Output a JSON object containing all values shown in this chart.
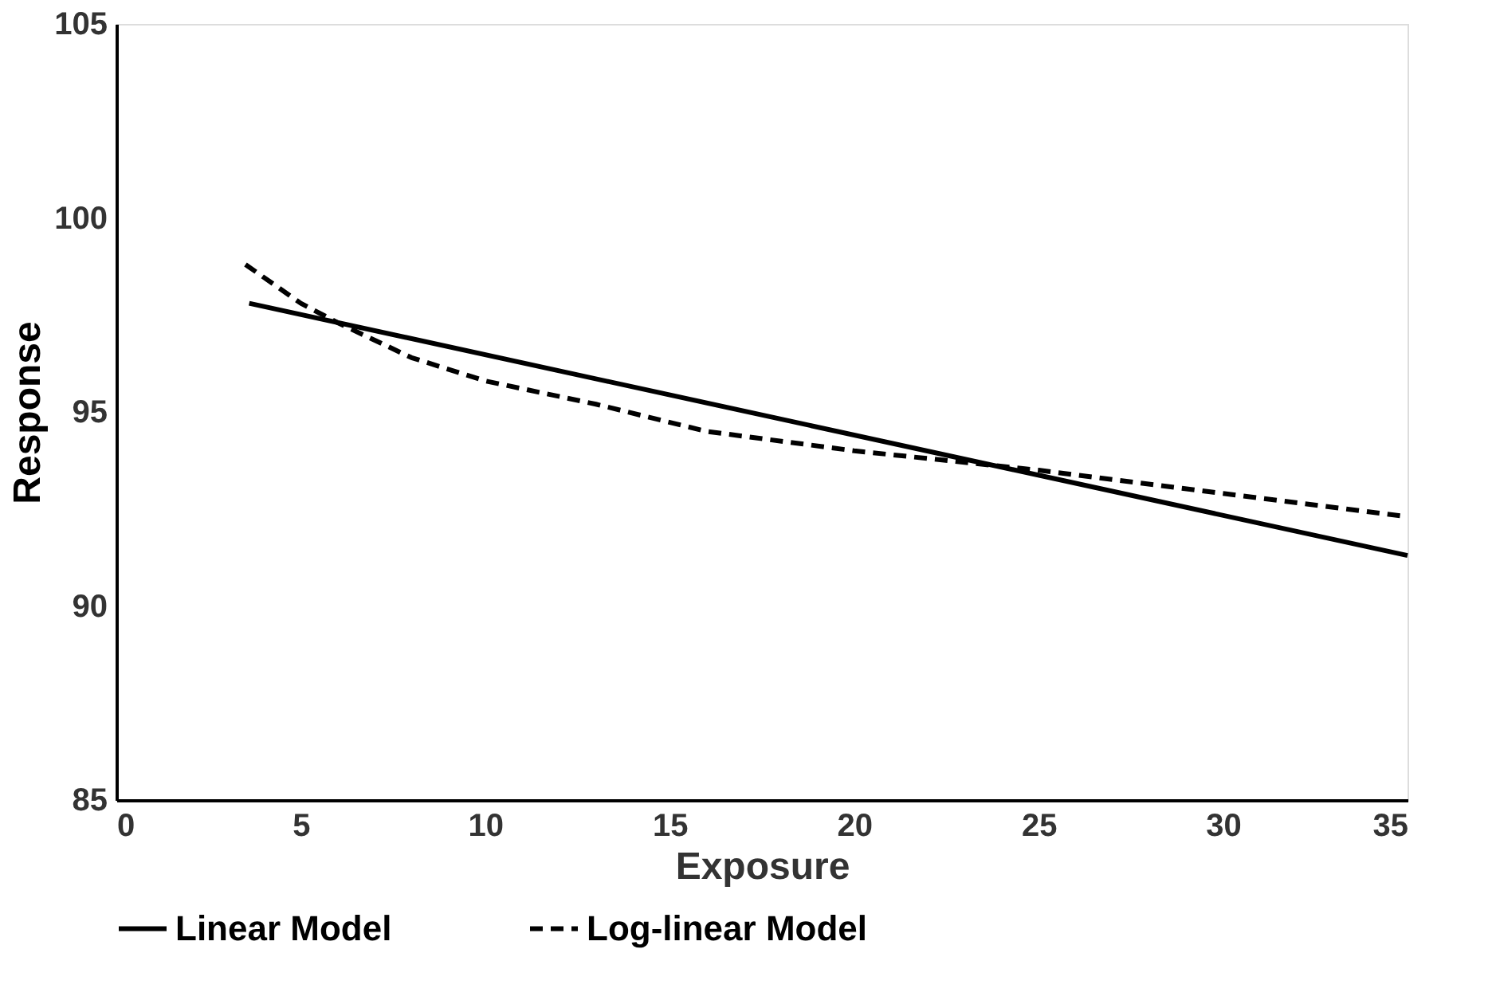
{
  "chart_data": {
    "type": "line",
    "xlabel": "Exposure",
    "ylabel": "Response",
    "xlim": [
      0,
      35
    ],
    "xticks": [
      0,
      5,
      10,
      15,
      20,
      25,
      30,
      35
    ],
    "ylim": [
      85,
      105
    ],
    "yticks": [
      85,
      90,
      95,
      100,
      105
    ],
    "grid": false,
    "legend": "bottom",
    "marker": "none",
    "series": [
      {
        "name": "Linear Model",
        "color": "#000000",
        "line_style": "solid",
        "x": [
          3.6,
          35
        ],
        "values": [
          97.8,
          91.3
        ]
      },
      {
        "name": "Log-linear Model",
        "color": "#000000",
        "line_style": "dashed",
        "x": [
          3.5,
          5,
          6,
          8,
          10,
          13,
          16,
          20,
          25,
          30,
          35
        ],
        "values": [
          98.8,
          97.8,
          97.3,
          96.4,
          95.8,
          95.2,
          94.5,
          94.0,
          93.5,
          92.9,
          92.3
        ]
      }
    ]
  }
}
